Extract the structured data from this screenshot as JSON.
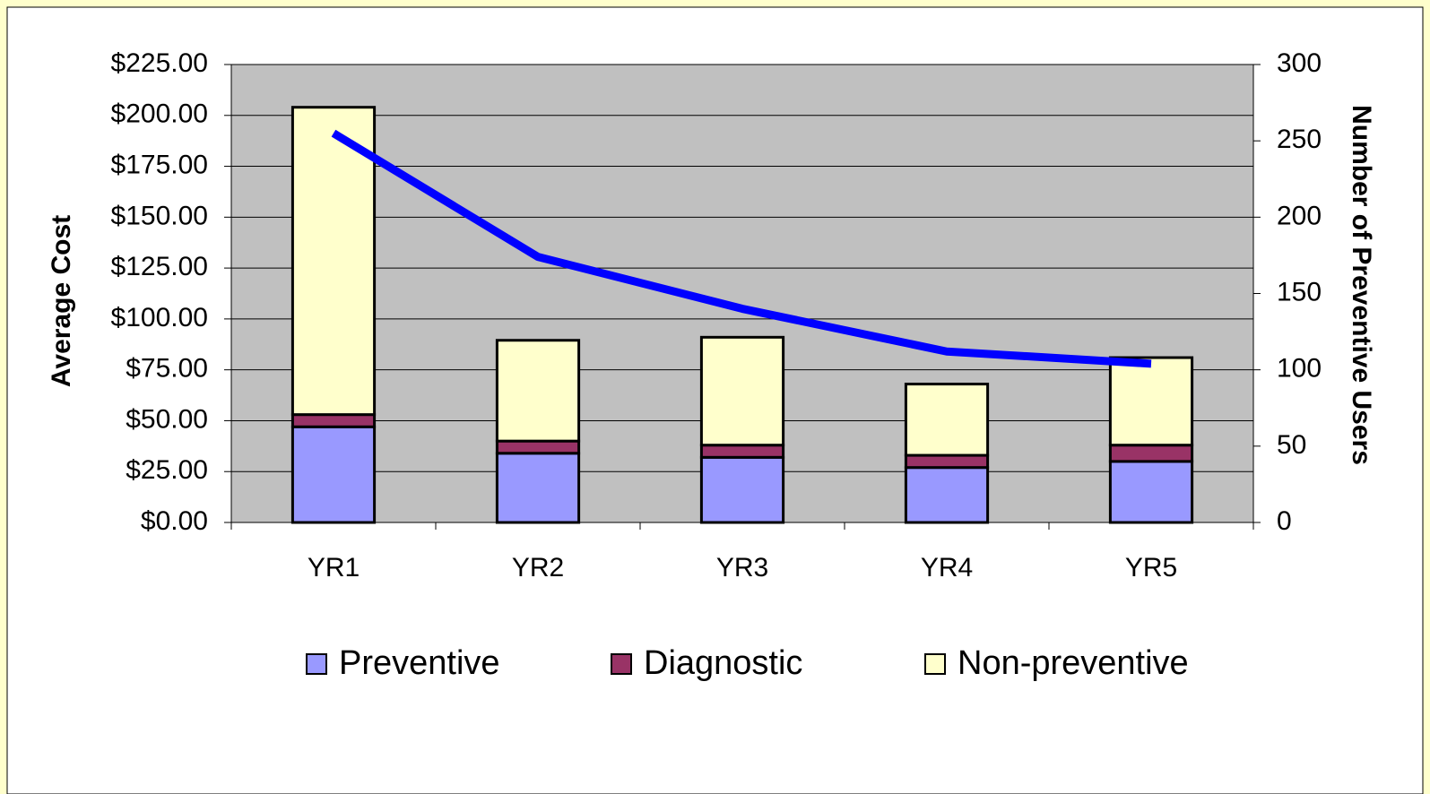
{
  "chart_data": {
    "type": "bar",
    "stacked": true,
    "y_label": "Average Cost",
    "y2_label": "Number of Preventive Users",
    "categories": [
      "YR1",
      "YR2",
      "YR3",
      "YR4",
      "YR5"
    ],
    "series": [
      {
        "name": "Preventive",
        "color": "#9999ff",
        "values": [
          47,
          34,
          32,
          27,
          30
        ]
      },
      {
        "name": "Diagnostic",
        "color": "#993366",
        "values": [
          6,
          6,
          6,
          6,
          8
        ]
      },
      {
        "name": "Non-preventive",
        "color": "#ffffcc",
        "values": [
          151,
          49.5,
          53,
          35,
          43
        ]
      },
      {
        "type": "line",
        "axis": "y2",
        "color": "#0000ff",
        "values": [
          255,
          174,
          140,
          112,
          104
        ]
      }
    ],
    "ylim": [
      0,
      225
    ],
    "yticks": [
      {
        "value": 0,
        "label": "$0.00"
      },
      {
        "value": 25,
        "label": "$25.00"
      },
      {
        "value": 50,
        "label": "$50.00"
      },
      {
        "value": 75,
        "label": "$75.00"
      },
      {
        "value": 100,
        "label": "$100.00"
      },
      {
        "value": 125,
        "label": "$125.00"
      },
      {
        "value": 150,
        "label": "$150.00"
      },
      {
        "value": 175,
        "label": "$175.00"
      },
      {
        "value": 200,
        "label": "$200.00"
      },
      {
        "value": 225,
        "label": "$225.00"
      }
    ],
    "y2lim": [
      0,
      300
    ],
    "y2ticks": [
      0,
      50,
      100,
      150,
      200,
      250,
      300
    ],
    "grid": true,
    "plot_background": "#c0c0c0",
    "legend": "bottom"
  }
}
